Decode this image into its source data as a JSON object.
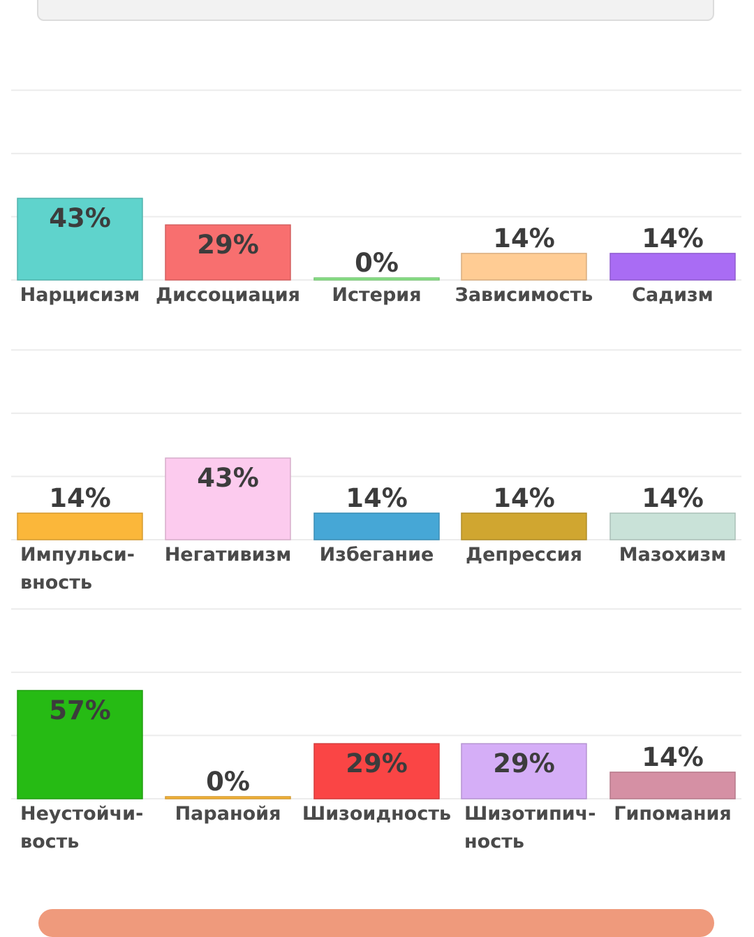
{
  "chart_data": [
    {
      "type": "bar",
      "categories": [
        "Нарцисизм",
        "Диссоциация",
        "Истерия",
        "Зависимость",
        "Садизм"
      ],
      "label_lines": [
        [
          "Нарцисизм"
        ],
        [
          "Диссоциация"
        ],
        [
          "Истерия"
        ],
        [
          "Зависимость"
        ],
        [
          "Садизм"
        ]
      ],
      "values": [
        43,
        29,
        0,
        14,
        14
      ],
      "value_labels": [
        "43%",
        "29%",
        "0%",
        "14%",
        "14%"
      ],
      "colors": [
        "#5fd3cc",
        "#f86f6f",
        "#8ce88a",
        "#ffcc94",
        "#a96cf4"
      ],
      "ylim": [
        0,
        100
      ],
      "grid": true
    },
    {
      "type": "bar",
      "categories": [
        "Импульсивность",
        "Негативизм",
        "Избегание",
        "Депрессия",
        "Мазохизм"
      ],
      "label_lines": [
        [
          "Импульси-",
          "вность"
        ],
        [
          "Негативизм"
        ],
        [
          "Избегание"
        ],
        [
          "Депрессия"
        ],
        [
          "Мазохизм"
        ]
      ],
      "values": [
        14,
        43,
        14,
        14,
        14
      ],
      "value_labels": [
        "14%",
        "43%",
        "14%",
        "14%",
        "14%"
      ],
      "colors": [
        "#fbb73a",
        "#fccbee",
        "#46a7d6",
        "#d0a630",
        "#c9e2d8"
      ],
      "ylim": [
        0,
        100
      ],
      "grid": true
    },
    {
      "type": "bar",
      "categories": [
        "Неустойчивость",
        "Паранойя",
        "Шизоидность",
        "Шизотипичность",
        "Гипомания"
      ],
      "label_lines": [
        [
          "Неустойчи-",
          "вость"
        ],
        [
          "Паранойя"
        ],
        [
          "Шизоидность"
        ],
        [
          "Шизотипич-",
          "ность"
        ],
        [
          "Гипомания"
        ]
      ],
      "values": [
        57,
        0,
        29,
        29,
        14
      ],
      "value_labels": [
        "57%",
        "0%",
        "29%",
        "29%",
        "14%"
      ],
      "colors": [
        "#26bb14",
        "#fbb73a",
        "#fa4545",
        "#d5aef7",
        "#d590a4"
      ],
      "ylim": [
        0,
        100
      ],
      "grid": true
    }
  ]
}
